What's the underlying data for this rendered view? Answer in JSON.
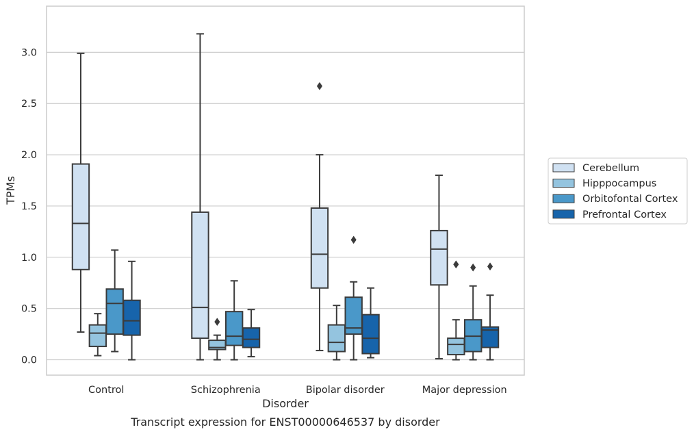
{
  "caption": "Transcript expression for ENST00000646537 by disorder",
  "chart_data": {
    "type": "box",
    "xlabel": "Disorder",
    "ylabel": "TPMs",
    "ylim": [
      -0.15,
      3.45
    ],
    "yticks": [
      0.0,
      0.5,
      1.0,
      1.5,
      2.0,
      2.5,
      3.0
    ],
    "ytick_labels": [
      "0.0",
      "0.5",
      "1.0",
      "1.5",
      "2.0",
      "2.5",
      "3.0"
    ],
    "grid": "horizontal",
    "legend_position": "right",
    "categories": [
      "Control",
      "Schizophrenia",
      "Bipolar disorder",
      "Major depression"
    ],
    "series": [
      {
        "name": "Cerebellum",
        "color": "#d0e1f2",
        "boxes": [
          {
            "whislo": 0.27,
            "q1": 0.88,
            "med": 1.33,
            "q3": 1.91,
            "whishi": 2.99,
            "fliers": []
          },
          {
            "whislo": 0.0,
            "q1": 0.21,
            "med": 0.51,
            "q3": 1.44,
            "whishi": 3.18,
            "fliers": []
          },
          {
            "whislo": 0.09,
            "q1": 0.7,
            "med": 1.03,
            "q3": 1.48,
            "whishi": 2.0,
            "fliers": [
              2.67
            ]
          },
          {
            "whislo": 0.01,
            "q1": 0.73,
            "med": 1.08,
            "q3": 1.26,
            "whishi": 1.8,
            "fliers": []
          }
        ]
      },
      {
        "name": "Hipppocampus",
        "color": "#94c4df",
        "boxes": [
          {
            "whislo": 0.04,
            "q1": 0.13,
            "med": 0.26,
            "q3": 0.34,
            "whishi": 0.45,
            "fliers": []
          },
          {
            "whislo": 0.0,
            "q1": 0.1,
            "med": 0.12,
            "q3": 0.19,
            "whishi": 0.24,
            "fliers": [
              0.37
            ]
          },
          {
            "whislo": 0.0,
            "q1": 0.08,
            "med": 0.17,
            "q3": 0.34,
            "whishi": 0.53,
            "fliers": []
          },
          {
            "whislo": 0.0,
            "q1": 0.05,
            "med": 0.15,
            "q3": 0.21,
            "whishi": 0.39,
            "fliers": [
              0.93
            ]
          }
        ]
      },
      {
        "name": "Orbitofontal Cortex",
        "color": "#4a98c9",
        "boxes": [
          {
            "whislo": 0.08,
            "q1": 0.25,
            "med": 0.55,
            "q3": 0.69,
            "whishi": 1.07,
            "fliers": []
          },
          {
            "whislo": 0.0,
            "q1": 0.14,
            "med": 0.23,
            "q3": 0.47,
            "whishi": 0.77,
            "fliers": []
          },
          {
            "whislo": 0.0,
            "q1": 0.25,
            "med": 0.31,
            "q3": 0.61,
            "whishi": 0.76,
            "fliers": [
              1.17
            ]
          },
          {
            "whislo": 0.0,
            "q1": 0.08,
            "med": 0.23,
            "q3": 0.39,
            "whishi": 0.72,
            "fliers": [
              0.9
            ]
          }
        ]
      },
      {
        "name": "Prefrontal Cortex",
        "color": "#1764ab",
        "boxes": [
          {
            "whislo": 0.0,
            "q1": 0.24,
            "med": 0.38,
            "q3": 0.58,
            "whishi": 0.96,
            "fliers": []
          },
          {
            "whislo": 0.03,
            "q1": 0.12,
            "med": 0.2,
            "q3": 0.31,
            "whishi": 0.49,
            "fliers": []
          },
          {
            "whislo": 0.02,
            "q1": 0.06,
            "med": 0.21,
            "q3": 0.44,
            "whishi": 0.7,
            "fliers": []
          },
          {
            "whislo": 0.0,
            "q1": 0.12,
            "med": 0.29,
            "q3": 0.32,
            "whishi": 0.63,
            "fliers": [
              0.91
            ]
          }
        ]
      }
    ]
  }
}
